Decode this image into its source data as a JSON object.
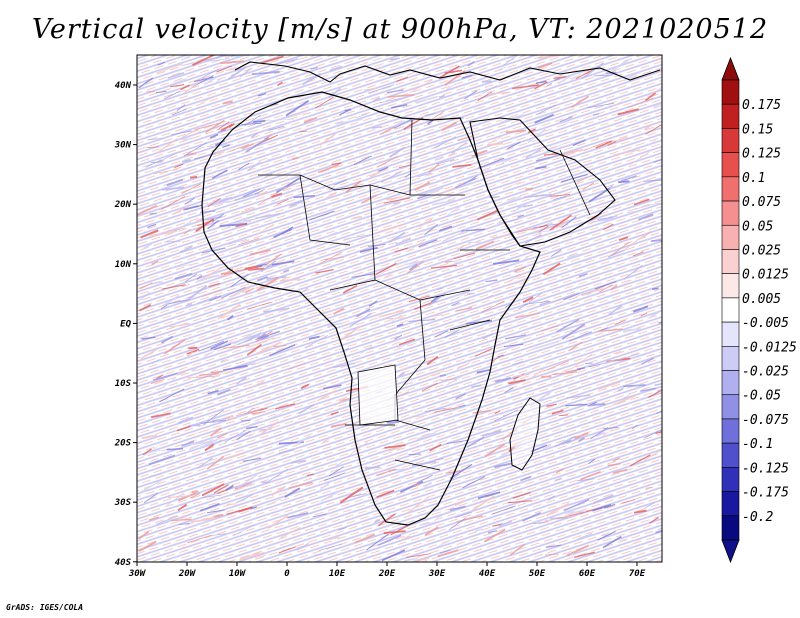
{
  "title": "Vertical velocity [m/s] at 900hPa, VT: 2021020512",
  "credit": "GrADS: IGES/COLA",
  "map": {
    "lon_range": [
      -30,
      75
    ],
    "lat_range": [
      -40,
      45
    ],
    "x_ticks": [
      "30W",
      "20W",
      "10W",
      "0",
      "10E",
      "20E",
      "30E",
      "40E",
      "50E",
      "60E",
      "70E"
    ],
    "y_ticks": [
      "40N",
      "30N",
      "20N",
      "10N",
      "EQ",
      "10S",
      "20S",
      "30S",
      "40S"
    ]
  },
  "colorbar": {
    "levels": [
      "0.175",
      "0.15",
      "0.125",
      "0.1",
      "0.075",
      "0.05",
      "0.025",
      "0.0125",
      "0.005",
      "-0.005",
      "-0.0125",
      "-0.025",
      "-0.05",
      "-0.075",
      "-0.1",
      "-0.125",
      "-0.175",
      "-0.2"
    ],
    "colors": [
      "#a01010",
      "#c02020",
      "#d83838",
      "#e85050",
      "#f07070",
      "#f49090",
      "#f8b0b0",
      "#fbd0d0",
      "#fde8e8",
      "#ffffff",
      "#e4e4fb",
      "#ccccf6",
      "#b0b0f0",
      "#9090e6",
      "#7070da",
      "#5050cc",
      "#3030b8",
      "#1818a0",
      "#0a0a80"
    ],
    "top_arrow_color": "#8c0c0c",
    "bottom_arrow_color": "#10108a"
  }
}
